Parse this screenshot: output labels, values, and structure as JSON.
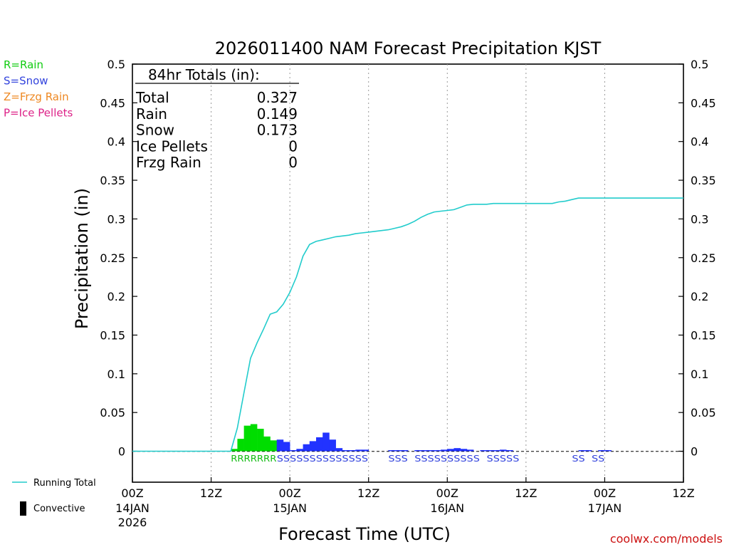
{
  "chart_data": {
    "type": "bar",
    "title": "2026011400 NAM Forecast Precipitation KJST",
    "xlabel": "Forecast Time (UTC)",
    "ylabel": "Precipitation (in)",
    "ylim": [
      -0.04,
      0.5
    ],
    "xlim_hours": [
      0,
      84
    ],
    "y_ticks": [
      "0",
      "0.05",
      "0.1",
      "0.15",
      "0.2",
      "0.25",
      "0.3",
      "0.35",
      "0.4",
      "0.45",
      "0.5"
    ],
    "x_ticks": [
      {
        "hour": 0,
        "label": "00Z",
        "date": "14JAN",
        "year": "2026"
      },
      {
        "hour": 12,
        "label": "12Z",
        "date": "",
        "year": ""
      },
      {
        "hour": 24,
        "label": "00Z",
        "date": "15JAN",
        "year": ""
      },
      {
        "hour": 36,
        "label": "12Z",
        "date": "",
        "year": ""
      },
      {
        "hour": 48,
        "label": "00Z",
        "date": "16JAN",
        "year": ""
      },
      {
        "hour": 60,
        "label": "12Z",
        "date": "",
        "year": ""
      },
      {
        "hour": 72,
        "label": "00Z",
        "date": "17JAN",
        "year": ""
      },
      {
        "hour": 84,
        "label": "12Z",
        "date": "",
        "year": ""
      }
    ],
    "type_legend": [
      {
        "text": "R=Rain",
        "color": "#11cc11"
      },
      {
        "text": "S=Snow",
        "color": "#3344dd"
      },
      {
        "text": "Z=Frzg Rain",
        "color": "#ee8822"
      },
      {
        "text": "P=Ice Pellets",
        "color": "#dd2288"
      }
    ],
    "totals": {
      "header": "84hr Totals (in):",
      "rows": [
        {
          "label": "Total",
          "value": "0.327"
        },
        {
          "label": "Rain",
          "value": "0.149"
        },
        {
          "label": "Snow",
          "value": "0.173"
        },
        {
          "label": "Ice Pellets",
          "value": "0"
        },
        {
          "label": "Frzg Rain",
          "value": "0"
        }
      ]
    },
    "series": [
      {
        "name": "Hourly Precipitation",
        "bars": [
          {
            "hour": 15,
            "value": 0.003,
            "type": "R"
          },
          {
            "hour": 16,
            "value": 0.016,
            "type": "R"
          },
          {
            "hour": 17,
            "value": 0.033,
            "type": "R"
          },
          {
            "hour": 18,
            "value": 0.035,
            "type": "R"
          },
          {
            "hour": 19,
            "value": 0.029,
            "type": "R"
          },
          {
            "hour": 20,
            "value": 0.019,
            "type": "R"
          },
          {
            "hour": 21,
            "value": 0.014,
            "type": "R"
          },
          {
            "hour": 22,
            "value": 0.015,
            "type": "S"
          },
          {
            "hour": 23,
            "value": 0.012,
            "type": "S"
          },
          {
            "hour": 24,
            "value": 0.001,
            "type": "S"
          },
          {
            "hour": 25,
            "value": 0.003,
            "type": "S"
          },
          {
            "hour": 26,
            "value": 0.009,
            "type": "S"
          },
          {
            "hour": 27,
            "value": 0.013,
            "type": "S"
          },
          {
            "hour": 28,
            "value": 0.018,
            "type": "S"
          },
          {
            "hour": 29,
            "value": 0.024,
            "type": "S"
          },
          {
            "hour": 30,
            "value": 0.015,
            "type": "S"
          },
          {
            "hour": 31,
            "value": 0.004,
            "type": "S"
          },
          {
            "hour": 32,
            "value": 0.001,
            "type": "S"
          },
          {
            "hour": 33,
            "value": 0.001,
            "type": "S"
          },
          {
            "hour": 34,
            "value": 0.002,
            "type": "S"
          },
          {
            "hour": 35,
            "value": 0.002,
            "type": "S"
          },
          {
            "hour": 39,
            "value": 0.001,
            "type": "S"
          },
          {
            "hour": 40,
            "value": 0.001,
            "type": "S"
          },
          {
            "hour": 41,
            "value": 0.001,
            "type": "S"
          },
          {
            "hour": 43,
            "value": 0.001,
            "type": "S"
          },
          {
            "hour": 44,
            "value": 0.001,
            "type": "S"
          },
          {
            "hour": 45,
            "value": 0.001,
            "type": "S"
          },
          {
            "hour": 46,
            "value": 0.001,
            "type": "S"
          },
          {
            "hour": 47,
            "value": 0.002,
            "type": "S"
          },
          {
            "hour": 48,
            "value": 0.003,
            "type": "S"
          },
          {
            "hour": 49,
            "value": 0.004,
            "type": "S"
          },
          {
            "hour": 50,
            "value": 0.003,
            "type": "S"
          },
          {
            "hour": 51,
            "value": 0.002,
            "type": "S"
          },
          {
            "hour": 53,
            "value": 0.001,
            "type": "S"
          },
          {
            "hour": 54,
            "value": 0.001,
            "type": "S"
          },
          {
            "hour": 55,
            "value": 0.001,
            "type": "S"
          },
          {
            "hour": 56,
            "value": 0.002,
            "type": "S"
          },
          {
            "hour": 57,
            "value": 0.001,
            "type": "S"
          },
          {
            "hour": 68,
            "value": 0.001,
            "type": "S"
          },
          {
            "hour": 69,
            "value": 0.001,
            "type": "S"
          },
          {
            "hour": 71,
            "value": 0.001,
            "type": "S"
          },
          {
            "hour": 72,
            "value": 0.001,
            "type": "S"
          }
        ]
      },
      {
        "name": "Running Total",
        "points": [
          [
            0,
            0
          ],
          [
            15,
            0
          ],
          [
            16,
            0.03
          ],
          [
            17,
            0.075
          ],
          [
            18,
            0.12
          ],
          [
            19,
            0.14
          ],
          [
            20,
            0.158
          ],
          [
            21,
            0.177
          ],
          [
            22,
            0.18
          ],
          [
            23,
            0.19
          ],
          [
            24,
            0.205
          ],
          [
            25,
            0.225
          ],
          [
            26,
            0.252
          ],
          [
            27,
            0.267
          ],
          [
            28,
            0.271
          ],
          [
            29,
            0.273
          ],
          [
            30,
            0.275
          ],
          [
            31,
            0.277
          ],
          [
            32,
            0.278
          ],
          [
            33,
            0.279
          ],
          [
            34,
            0.281
          ],
          [
            35,
            0.282
          ],
          [
            36,
            0.283
          ],
          [
            37,
            0.284
          ],
          [
            38,
            0.285
          ],
          [
            39,
            0.286
          ],
          [
            40,
            0.288
          ],
          [
            41,
            0.29
          ],
          [
            42,
            0.293
          ],
          [
            43,
            0.297
          ],
          [
            44,
            0.302
          ],
          [
            45,
            0.306
          ],
          [
            46,
            0.309
          ],
          [
            47,
            0.31
          ],
          [
            48,
            0.311
          ],
          [
            49,
            0.312
          ],
          [
            50,
            0.315
          ],
          [
            51,
            0.318
          ],
          [
            52,
            0.319
          ],
          [
            53,
            0.319
          ],
          [
            54,
            0.319
          ],
          [
            55,
            0.32
          ],
          [
            56,
            0.32
          ],
          [
            57,
            0.32
          ],
          [
            58,
            0.32
          ],
          [
            59,
            0.32
          ],
          [
            60,
            0.32
          ],
          [
            61,
            0.32
          ],
          [
            62,
            0.32
          ],
          [
            63,
            0.32
          ],
          [
            64,
            0.32
          ],
          [
            65,
            0.322
          ],
          [
            66,
            0.323
          ],
          [
            67,
            0.325
          ],
          [
            68,
            0.327
          ],
          [
            70,
            0.327
          ],
          [
            84,
            0.327
          ]
        ]
      }
    ],
    "precip_type_strip": [
      {
        "hour": 15,
        "text": "RRRRRRR",
        "type": "R"
      },
      {
        "hour": 22,
        "text": "SSSSSSSSSSSSSS",
        "type": "S"
      },
      {
        "hour": 39,
        "text": "SSS",
        "type": "S"
      },
      {
        "hour": 43,
        "text": "SSSSSSSSSS",
        "type": "S"
      },
      {
        "hour": 54,
        "text": "SSSSS",
        "type": "S"
      },
      {
        "hour": 67,
        "text": "SS",
        "type": "S"
      },
      {
        "hour": 70,
        "text": "SS",
        "type": "S"
      }
    ],
    "line_legend": [
      {
        "label": "Running Total",
        "kind": "line",
        "color": "#22cccc"
      },
      {
        "label": "Convective",
        "kind": "bar",
        "color": "#000000"
      }
    ],
    "colors": {
      "rain": "#00dd00",
      "snow": "#2233ff",
      "running_total": "#22cccc",
      "axis": "#000000",
      "grid": "#999999",
      "credit": "#cc1111"
    },
    "credit": "coolwx.com/models"
  }
}
